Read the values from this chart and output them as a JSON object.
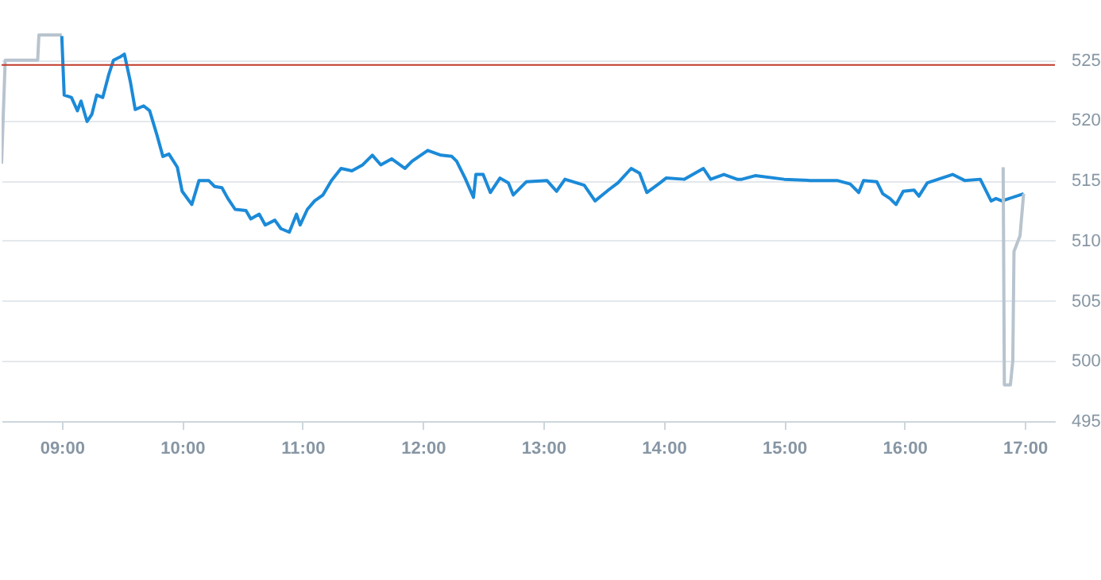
{
  "chart_data": {
    "type": "line",
    "xlim": [
      8.5,
      17.25
    ],
    "ylim": [
      495,
      530
    ],
    "xticks": [
      {
        "value": 9,
        "label": "09:00"
      },
      {
        "value": 10,
        "label": "10:00"
      },
      {
        "value": 11,
        "label": "11:00"
      },
      {
        "value": 12,
        "label": "12:00"
      },
      {
        "value": 13,
        "label": "13:00"
      },
      {
        "value": 14,
        "label": "14:00"
      },
      {
        "value": 15,
        "label": "15:00"
      },
      {
        "value": 16,
        "label": "16:00"
      },
      {
        "value": 17,
        "label": "17:00"
      }
    ],
    "yticks": [
      495,
      500,
      505,
      510,
      515,
      520,
      525
    ],
    "grid": "y",
    "ref_lines": [
      {
        "axis": "y",
        "value": 524.6,
        "color": "#c0392b"
      }
    ],
    "series": [
      {
        "color": "#b8c4ce",
        "x": [
          8.5,
          8.53,
          8.8,
          8.81,
          9.0
        ],
        "values": [
          516.4,
          525.0,
          525.0,
          527.1,
          527.1
        ]
      },
      {
        "color": "#1b8ad8",
        "x": [
          9.0,
          9.02,
          9.08,
          9.13,
          9.16,
          9.21,
          9.25,
          9.29,
          9.34,
          9.39,
          9.43,
          9.49,
          9.52,
          9.57,
          9.61,
          9.68,
          9.73,
          9.79,
          9.84,
          9.89,
          9.96,
          10.0,
          10.08,
          10.14,
          10.22,
          10.27,
          10.33,
          10.38,
          10.44,
          10.53,
          10.57,
          10.64,
          10.69,
          10.77,
          10.82,
          10.89,
          10.95,
          10.98,
          11.04,
          11.1,
          11.17,
          11.24,
          11.32,
          11.41,
          11.5,
          11.58,
          11.65,
          11.74,
          11.85,
          11.91,
          12.04,
          12.15,
          12.24,
          12.28,
          12.35,
          12.42,
          12.44,
          12.5,
          12.56,
          12.64,
          12.71,
          12.75,
          12.86,
          13.03,
          13.11,
          13.18,
          13.34,
          13.43,
          13.54,
          13.62,
          13.73,
          13.8,
          13.86,
          13.97,
          14.02,
          14.17,
          14.26,
          14.33,
          14.39,
          14.5,
          14.61,
          14.65,
          14.76,
          15.0,
          15.22,
          15.44,
          15.55,
          15.62,
          15.66,
          15.77,
          15.82,
          15.88,
          15.93,
          15.99,
          16.08,
          16.12,
          16.19,
          16.28,
          16.4,
          16.5,
          16.63,
          16.72,
          16.76,
          16.81,
          16.99
        ],
        "values": [
          527.0,
          522.1,
          521.9,
          520.8,
          521.6,
          519.9,
          520.5,
          522.1,
          521.9,
          523.8,
          525.0,
          525.3,
          525.5,
          523.2,
          520.9,
          521.2,
          520.8,
          518.8,
          517.0,
          517.2,
          516.1,
          514.1,
          513.0,
          515.0,
          515.0,
          514.5,
          514.4,
          513.5,
          512.6,
          512.5,
          511.8,
          512.2,
          511.3,
          511.7,
          511.0,
          510.7,
          512.2,
          511.3,
          512.6,
          513.3,
          513.8,
          515.0,
          516.0,
          515.8,
          516.3,
          517.1,
          516.3,
          516.8,
          516.0,
          516.6,
          517.5,
          517.1,
          517.0,
          516.6,
          515.2,
          513.6,
          515.5,
          515.5,
          514.0,
          515.2,
          514.8,
          513.8,
          514.9,
          515.0,
          514.1,
          515.1,
          514.6,
          513.3,
          514.2,
          514.8,
          516.0,
          515.6,
          514.0,
          514.8,
          515.2,
          515.1,
          515.6,
          516.0,
          515.1,
          515.5,
          515.1,
          515.1,
          515.4,
          515.1,
          515.0,
          515.0,
          514.7,
          514.0,
          515.0,
          514.9,
          513.9,
          513.5,
          513.0,
          514.1,
          514.2,
          513.7,
          514.8,
          515.1,
          515.5,
          515.0,
          515.1,
          513.3,
          513.5,
          513.3,
          513.9
        ]
      },
      {
        "color": "#b8c4ce",
        "x": [
          16.82,
          16.83,
          16.88,
          16.9,
          16.91,
          16.96,
          16.99
        ],
        "values": [
          516.1,
          498.0,
          498.0,
          500.0,
          509.1,
          510.4,
          513.9
        ]
      }
    ]
  }
}
